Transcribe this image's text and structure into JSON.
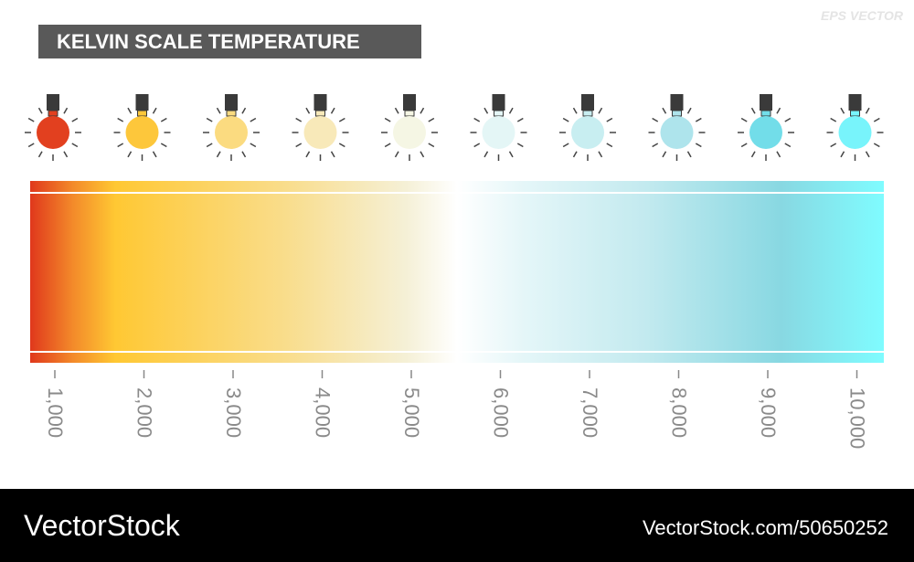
{
  "header": {
    "title": "KELVIN SCALE TEMPERATURE",
    "watermark": "EPS VECTOR"
  },
  "scale": {
    "ticks": [
      {
        "label": "1,000",
        "color": "#e2401f"
      },
      {
        "label": "2,000",
        "color": "#fdc73b"
      },
      {
        "label": "3,000",
        "color": "#fbdb80"
      },
      {
        "label": "4,000",
        "color": "#f8e9b9"
      },
      {
        "label": "5,000",
        "color": "#f5f6e4"
      },
      {
        "label": "6,000",
        "color": "#e4f6f6"
      },
      {
        "label": "7,000",
        "color": "#c8eef1"
      },
      {
        "label": "8,000",
        "color": "#aee4ec"
      },
      {
        "label": "9,000",
        "color": "#72dde9"
      },
      {
        "label": "10,000",
        "color": "#78f4fb"
      }
    ]
  },
  "footer": {
    "brand": "VectorStock",
    "url": "VectorStock.com/50650252"
  }
}
